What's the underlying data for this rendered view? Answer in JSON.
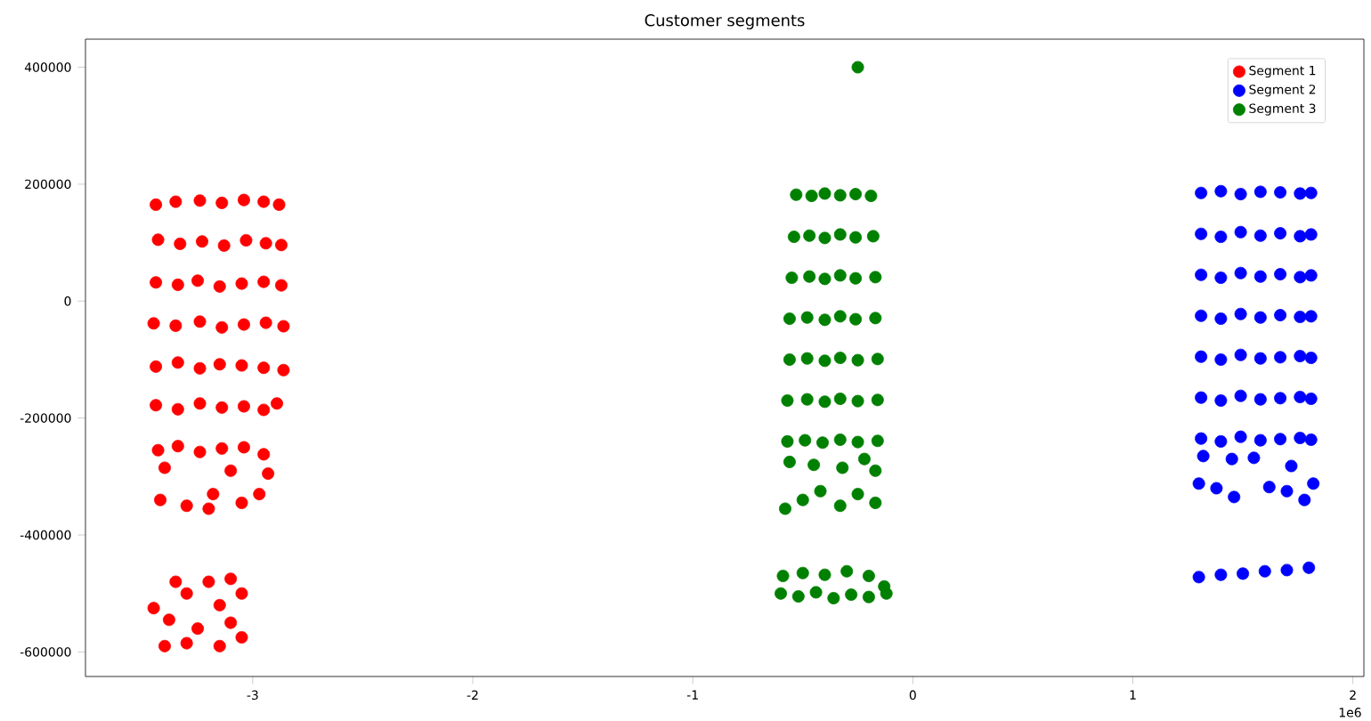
{
  "chart_data": {
    "type": "scatter",
    "title": "Customer segments",
    "xlim": [
      -3.76,
      2.05
    ],
    "ylim": [
      -642000,
      448000
    ],
    "xticks": [
      -3,
      -2,
      -1,
      0,
      1,
      2
    ],
    "yticks": [
      -600000,
      -400000,
      -200000,
      0,
      200000,
      400000
    ],
    "annotations": [
      "1e6"
    ],
    "legend": "top right",
    "marker": "circle",
    "grid": false,
    "series": [
      {
        "name": "Segment 1",
        "color": "#ff0000",
        "x": [
          -3.44,
          -3.35,
          -3.24,
          -3.14,
          -3.04,
          -2.95,
          -2.88,
          -3.43,
          -3.33,
          -3.23,
          -3.13,
          -3.03,
          -2.94,
          -2.87,
          -3.44,
          -3.34,
          -3.25,
          -3.15,
          -3.05,
          -2.95,
          -2.87,
          -3.45,
          -3.35,
          -3.24,
          -3.14,
          -3.04,
          -2.94,
          -2.86,
          -3.44,
          -3.34,
          -3.24,
          -3.15,
          -3.05,
          -2.95,
          -2.86,
          -3.44,
          -3.34,
          -3.24,
          -3.14,
          -3.04,
          -2.95,
          -2.89,
          -3.43,
          -3.34,
          -3.24,
          -3.14,
          -3.04,
          -2.95,
          -3.1,
          -3.4,
          -2.93,
          -3.42,
          -3.3,
          -3.18,
          -3.05,
          -3.2,
          -2.97,
          -3.35,
          -3.1,
          -3.2,
          -3.45,
          -3.3,
          -3.15,
          -3.05,
          -3.38,
          -3.25,
          -3.1,
          -3.4,
          -3.3,
          -3.15,
          -3.05
        ],
        "values": [
          165000,
          170000,
          172000,
          168000,
          173000,
          170000,
          165000,
          105000,
          98000,
          102000,
          95000,
          104000,
          99000,
          96000,
          32000,
          28000,
          35000,
          25000,
          30000,
          33000,
          27000,
          -38000,
          -42000,
          -35000,
          -45000,
          -40000,
          -37000,
          -43000,
          -112000,
          -105000,
          -115000,
          -108000,
          -110000,
          -114000,
          -118000,
          -178000,
          -185000,
          -175000,
          -182000,
          -180000,
          -186000,
          -175000,
          -255000,
          -248000,
          -258000,
          -252000,
          -250000,
          -262000,
          -290000,
          -285000,
          -295000,
          -340000,
          -350000,
          -330000,
          -345000,
          -355000,
          -330000,
          -480000,
          -475000,
          -480000,
          -525000,
          -500000,
          -520000,
          -500000,
          -545000,
          -560000,
          -550000,
          -590000,
          -585000,
          -590000,
          -575000
        ]
      },
      {
        "name": "Segment 2",
        "color": "#0000ff",
        "x": [
          1.31,
          1.4,
          1.49,
          1.58,
          1.67,
          1.76,
          1.81,
          1.31,
          1.4,
          1.49,
          1.58,
          1.67,
          1.76,
          1.81,
          1.31,
          1.4,
          1.49,
          1.58,
          1.67,
          1.76,
          1.81,
          1.31,
          1.4,
          1.49,
          1.58,
          1.67,
          1.76,
          1.81,
          1.31,
          1.4,
          1.49,
          1.58,
          1.67,
          1.76,
          1.81,
          1.31,
          1.4,
          1.49,
          1.58,
          1.67,
          1.76,
          1.81,
          1.31,
          1.4,
          1.49,
          1.58,
          1.67,
          1.76,
          1.81,
          1.32,
          1.45,
          1.55,
          1.72,
          1.3,
          1.38,
          1.46,
          1.62,
          1.7,
          1.78,
          1.82,
          1.3,
          1.4,
          1.5,
          1.6,
          1.7,
          1.8
        ],
        "values": [
          185000,
          188000,
          183000,
          187000,
          186000,
          184000,
          185000,
          115000,
          110000,
          118000,
          112000,
          116000,
          111000,
          114000,
          45000,
          40000,
          48000,
          42000,
          46000,
          41000,
          44000,
          -25000,
          -30000,
          -22000,
          -28000,
          -24000,
          -27000,
          -26000,
          -95000,
          -100000,
          -92000,
          -98000,
          -96000,
          -94000,
          -97000,
          -165000,
          -170000,
          -162000,
          -168000,
          -166000,
          -164000,
          -167000,
          -235000,
          -240000,
          -232000,
          -238000,
          -236000,
          -234000,
          -237000,
          -265000,
          -270000,
          -268000,
          -282000,
          -312000,
          -320000,
          -335000,
          -318000,
          -325000,
          -340000,
          -312000,
          -472000,
          -468000,
          -466000,
          -462000,
          -460000,
          -456000
        ]
      },
      {
        "name": "Segment 3",
        "color": "#008000",
        "x": [
          -0.53,
          -0.46,
          -0.4,
          -0.33,
          -0.26,
          -0.19,
          -0.54,
          -0.47,
          -0.4,
          -0.33,
          -0.26,
          -0.18,
          -0.55,
          -0.47,
          -0.4,
          -0.33,
          -0.26,
          -0.17,
          -0.56,
          -0.48,
          -0.4,
          -0.33,
          -0.26,
          -0.17,
          -0.56,
          -0.48,
          -0.4,
          -0.33,
          -0.25,
          -0.16,
          -0.57,
          -0.48,
          -0.4,
          -0.33,
          -0.25,
          -0.16,
          -0.57,
          -0.49,
          -0.41,
          -0.33,
          -0.25,
          -0.16,
          -0.56,
          -0.45,
          -0.32,
          -0.22,
          -0.17,
          -0.58,
          -0.5,
          -0.42,
          -0.33,
          -0.25,
          -0.17,
          -0.6,
          -0.52,
          -0.44,
          -0.36,
          -0.28,
          -0.2,
          -0.12,
          -0.59,
          -0.5,
          -0.4,
          -0.3,
          -0.2,
          -0.13,
          -0.25
        ],
        "values": [
          182000,
          180000,
          184000,
          181000,
          183000,
          180000,
          110000,
          112000,
          108000,
          114000,
          109000,
          111000,
          40000,
          42000,
          38000,
          44000,
          39000,
          41000,
          -30000,
          -28000,
          -32000,
          -26000,
          -31000,
          -29000,
          -100000,
          -98000,
          -102000,
          -97000,
          -101000,
          -99000,
          -170000,
          -168000,
          -172000,
          -167000,
          -171000,
          -169000,
          -240000,
          -238000,
          -242000,
          -237000,
          -241000,
          -239000,
          -275000,
          -280000,
          -285000,
          -270000,
          -290000,
          -355000,
          -340000,
          -325000,
          -350000,
          -330000,
          -345000,
          -500000,
          -505000,
          -498000,
          -508000,
          -502000,
          -506000,
          -500000,
          -470000,
          -465000,
          -468000,
          -462000,
          -470000,
          -488000,
          400000
        ]
      }
    ]
  }
}
